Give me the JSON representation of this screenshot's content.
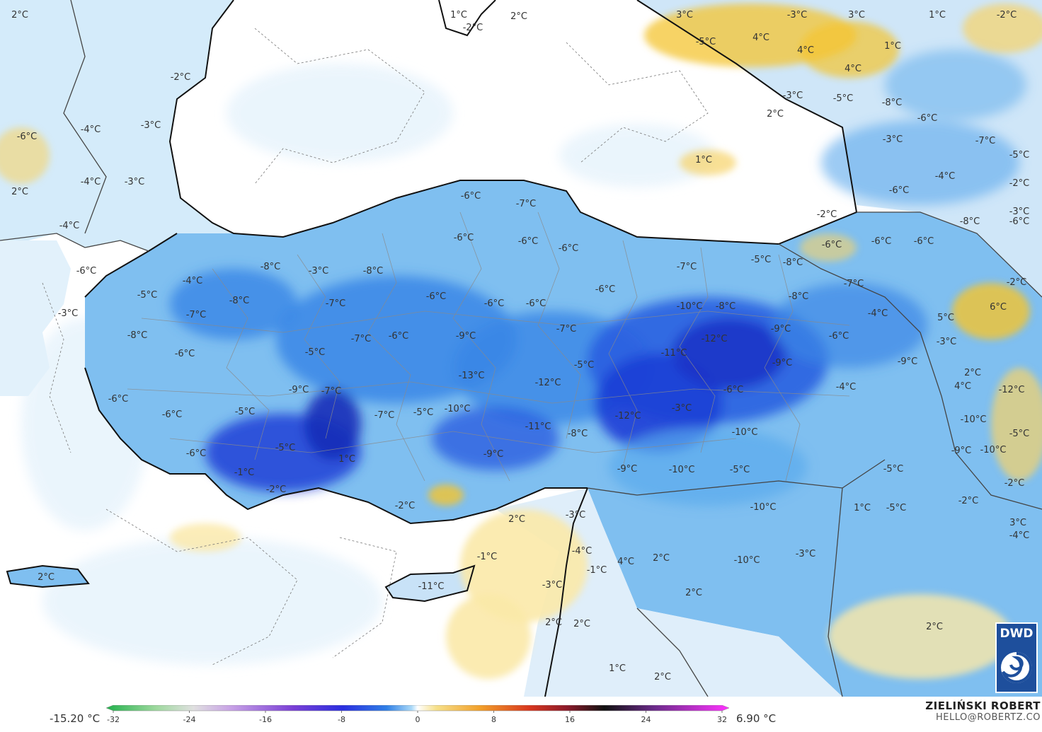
{
  "legend": {
    "min_label": "-15.20 °C",
    "max_label": "6.90 °C",
    "ticks": [
      "-32",
      "-24",
      "-16",
      "-8",
      "0",
      "8",
      "16",
      "24",
      "32"
    ]
  },
  "author": {
    "name": "ZIELIŃSKI ROBERT",
    "email": "HELLO@ROBERTZ.CO"
  },
  "logo": {
    "text": "DWD",
    "icon": "dwd-swirl-icon"
  },
  "colors": {
    "sea_background": "#ffffff",
    "cold_light": "#cfe8fa",
    "cold_mid": "#5aa9ec",
    "cold_deep": "#1c3fd6",
    "warm_light": "#fbe9a8",
    "warm_mid": "#f4c430"
  },
  "temperature_labels": [
    "2°C",
    "-2°C",
    "1°C",
    "-2°C",
    "2°C",
    "3°C",
    "-3°C",
    "1°C",
    "3°C",
    "4°C",
    "-5°C",
    "4°C",
    "4°C",
    "1°C",
    "-2°C",
    "-3°C",
    "-5°C",
    "2°C",
    "-8°C",
    "-6°C",
    "-3°C",
    "1°C",
    "-7°C",
    "-5°C",
    "-6°C",
    "2°C",
    "-4°C",
    "-3°C",
    "-6°C",
    "-2°C",
    "-4°C",
    "-2°C",
    "-4°C",
    "-4°C",
    "-3°C",
    "-6°C",
    "-3°C",
    "-7°C",
    "-6°C",
    "-6°C",
    "-8°C",
    "-6°C",
    "-6°C",
    "-6°C",
    "-6°C",
    "-5°C",
    "-8°C",
    "-6°C",
    "-6°C",
    "-7°C",
    "-8°C",
    "-4°C",
    "-5°C",
    "-3°C",
    "-6°C",
    "-3°C",
    "-8°C",
    "-8°C",
    "-7°C",
    "-6°C",
    "-6°C",
    "-10°C",
    "-8°C",
    "-7°C",
    "-4°C",
    "5°C",
    "6°C",
    "-2°C",
    "-8°C",
    "-6°C",
    "-7°C",
    "-7°C",
    "-6°C",
    "-9°C",
    "-9°C",
    "-6°C",
    "-8°C",
    "-6°C",
    "-7°C",
    "-5°C",
    "-11°C",
    "-12°C",
    "-9°C",
    "-3°C",
    "-5°C",
    "-4°C",
    "2°C",
    "-6°C",
    "-9°C",
    "-7°C",
    "-13°C",
    "-12°C",
    "-6°C",
    "-9°C",
    "-6°C",
    "-5°C",
    "-7°C",
    "-5°C",
    "-10°C",
    "-12°C",
    "-3°C",
    "4°C",
    "-12°C",
    "-11°C",
    "-9°C",
    "-10°C",
    "-8°C",
    "-10°C",
    "-10°C",
    "-9°C",
    "-5°C",
    "-6°C",
    "-5°C",
    "1°C",
    "-9°C",
    "-10°C",
    "-5°C",
    "-5°C",
    "-2°C",
    "-2°C",
    "-10°C",
    "1°C",
    "-5°C",
    "-3°C",
    "-1°C",
    "-2°C",
    "-3°C",
    "-2°C",
    "3°C",
    "-4°C",
    "-4°C",
    "-10°C",
    "2°C",
    "4°C",
    "-11°C",
    "2°C",
    "-1°C",
    "-1°C",
    "2°C",
    "-3°C",
    "2°C",
    "2°C",
    "1°C",
    "2°C",
    "2°C",
    "2°C"
  ]
}
